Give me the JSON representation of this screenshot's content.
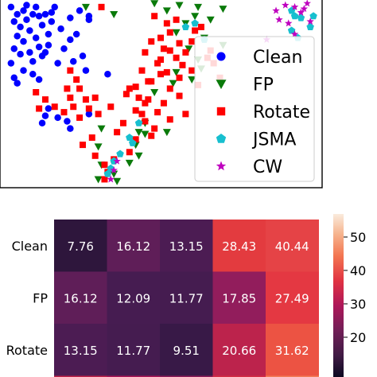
{
  "chart_data": [
    {
      "type": "scatter",
      "legend": {
        "placement": "lower-right",
        "entries": [
          {
            "label": "Clean",
            "marker": "circle",
            "color": "#0000ff"
          },
          {
            "label": "FP",
            "marker": "triangle-down",
            "color": "#0a7a0a"
          },
          {
            "label": "Rotate",
            "marker": "square",
            "color": "#ff0000"
          },
          {
            "label": "JSMA",
            "marker": "pentagon",
            "color": "#17bfcf"
          },
          {
            "label": "CW",
            "marker": "star",
            "color": "#bf00bf"
          }
        ]
      },
      "series": [
        {
          "name": "Clean",
          "points": [
            [
              0.02,
              0.97
            ],
            [
              0.04,
              0.93
            ],
            [
              0.06,
              0.95
            ],
            [
              0.03,
              0.89
            ],
            [
              0.05,
              0.86
            ],
            [
              0.07,
              0.9
            ],
            [
              0.09,
              0.93
            ],
            [
              0.1,
              0.97
            ],
            [
              0.08,
              0.84
            ],
            [
              0.04,
              0.81
            ],
            [
              0.06,
              0.78
            ],
            [
              0.1,
              0.8
            ],
            [
              0.12,
              0.87
            ],
            [
              0.13,
              0.93
            ],
            [
              0.11,
              0.75
            ],
            [
              0.03,
              0.74
            ],
            [
              0.05,
              0.71
            ],
            [
              0.08,
              0.72
            ],
            [
              0.02,
              0.66
            ],
            [
              0.14,
              0.82
            ],
            [
              0.15,
              0.89
            ],
            [
              0.16,
              0.97
            ],
            [
              0.14,
              0.76
            ],
            [
              0.12,
              0.7
            ],
            [
              0.09,
              0.67
            ],
            [
              0.18,
              0.85
            ],
            [
              0.11,
              0.92
            ],
            [
              0.07,
              0.98
            ],
            [
              0.13,
              0.72
            ],
            [
              0.21,
              0.79
            ],
            [
              0.23,
              0.82
            ],
            [
              0.25,
              0.7
            ],
            [
              0.17,
              0.66
            ],
            [
              0.06,
              0.62
            ],
            [
              0.11,
              0.57
            ],
            [
              0.04,
              0.55
            ],
            [
              0.09,
              0.6
            ],
            [
              0.19,
              0.74
            ],
            [
              0.27,
              0.9
            ],
            [
              0.24,
              0.95
            ],
            [
              0.14,
              0.41
            ],
            [
              0.13,
              0.37
            ],
            [
              0.12,
              0.33
            ],
            [
              0.17,
              0.36
            ],
            [
              0.21,
              0.3
            ],
            [
              0.27,
              0.38
            ],
            [
              0.2,
              0.34
            ],
            [
              0.33,
              0.6
            ],
            [
              0.21,
              0.91
            ],
            [
              0.26,
              0.62
            ],
            [
              0.22,
              0.67
            ],
            [
              0.03,
              0.58
            ],
            [
              0.15,
              0.94
            ],
            [
              0.27,
              0.92
            ]
          ]
        },
        {
          "name": "FP",
          "points": [
            [
              0.26,
              0.97
            ],
            [
              0.52,
              0.95
            ],
            [
              0.56,
              0.98
            ],
            [
              0.61,
              0.92
            ],
            [
              0.62,
              0.97
            ],
            [
              0.58,
              0.88
            ],
            [
              0.55,
              0.83
            ],
            [
              0.64,
              0.8
            ],
            [
              0.7,
              0.76
            ],
            [
              0.59,
              0.74
            ],
            [
              0.62,
              0.68
            ],
            [
              0.63,
              0.63
            ],
            [
              0.6,
              0.57
            ],
            [
              0.54,
              0.55
            ],
            [
              0.55,
              0.61
            ],
            [
              0.48,
              0.5
            ],
            [
              0.45,
              0.33
            ],
            [
              0.31,
              0.3
            ],
            [
              0.43,
              0.28
            ],
            [
              0.52,
              0.28
            ],
            [
              0.45,
              0.27
            ],
            [
              0.7,
              0.96
            ],
            [
              0.66,
              0.9
            ],
            [
              0.42,
              0.21
            ],
            [
              0.43,
              0.15
            ],
            [
              0.3,
              0.2
            ],
            [
              0.31,
              0.1
            ],
            [
              0.4,
              0.11
            ],
            [
              0.3,
              0.02
            ],
            [
              0.35,
              0.05
            ],
            [
              0.36,
              0.01
            ],
            [
              0.48,
              0.99
            ],
            [
              0.35,
              0.93
            ]
          ]
        },
        {
          "name": "Rotate",
          "points": [
            [
              0.48,
              0.92
            ],
            [
              0.52,
              0.88
            ],
            [
              0.53,
              0.83
            ],
            [
              0.47,
              0.78
            ],
            [
              0.51,
              0.74
            ],
            [
              0.55,
              0.69
            ],
            [
              0.49,
              0.66
            ],
            [
              0.52,
              0.61
            ],
            [
              0.46,
              0.56
            ],
            [
              0.53,
              0.52
            ],
            [
              0.43,
              0.47
            ],
            [
              0.51,
              0.44
            ],
            [
              0.56,
              0.48
            ],
            [
              0.49,
              0.39
            ],
            [
              0.53,
              0.35
            ],
            [
              0.58,
              0.38
            ],
            [
              0.45,
              0.34
            ],
            [
              0.48,
              0.3
            ],
            [
              0.47,
              0.26
            ],
            [
              0.42,
              0.24
            ],
            [
              0.4,
              0.17
            ],
            [
              0.35,
              0.13
            ],
            [
              0.32,
              0.1
            ],
            [
              0.33,
              0.06
            ],
            [
              0.32,
              0.02
            ],
            [
              0.29,
              0.15
            ],
            [
              0.25,
              0.21
            ],
            [
              0.28,
              0.25
            ],
            [
              0.24,
              0.36
            ],
            [
              0.22,
              0.42
            ],
            [
              0.21,
              0.47
            ],
            [
              0.24,
              0.52
            ],
            [
              0.27,
              0.41
            ],
            [
              0.23,
              0.57
            ],
            [
              0.21,
              0.62
            ],
            [
              0.26,
              0.46
            ],
            [
              0.3,
              0.38
            ],
            [
              0.36,
              0.28
            ],
            [
              0.38,
              0.33
            ],
            [
              0.42,
              0.4
            ],
            [
              0.45,
              0.44
            ],
            [
              0.4,
              0.52
            ],
            [
              0.44,
              0.62
            ],
            [
              0.5,
              0.68
            ],
            [
              0.56,
              0.58
            ],
            [
              0.6,
              0.62
            ],
            [
              0.58,
              0.72
            ],
            [
              0.6,
              0.78
            ],
            [
              0.63,
              0.86
            ],
            [
              0.66,
              0.73
            ],
            [
              0.67,
              0.66
            ],
            [
              0.56,
              0.77
            ],
            [
              0.53,
              0.73
            ],
            [
              0.5,
              0.8
            ],
            [
              0.61,
              0.84
            ],
            [
              0.45,
              0.72
            ],
            [
              0.55,
              0.9
            ],
            [
              0.31,
              0.97
            ],
            [
              0.46,
              0.46
            ],
            [
              0.44,
              0.38
            ],
            [
              0.47,
              0.56
            ],
            [
              0.57,
              0.65
            ],
            [
              0.65,
              0.69
            ],
            [
              0.69,
              0.58
            ],
            [
              0.62,
              0.54
            ],
            [
              0.1,
              0.5
            ],
            [
              0.13,
              0.46
            ],
            [
              0.16,
              0.42
            ],
            [
              0.19,
              0.39
            ],
            [
              0.11,
              0.41
            ],
            [
              0.2,
              0.52
            ],
            [
              0.29,
              0.47
            ],
            [
              0.34,
              0.42
            ],
            [
              0.39,
              0.49
            ],
            [
              0.42,
              0.53
            ],
            [
              0.5,
              0.6
            ]
          ]
        },
        {
          "name": "JSMA",
          "points": [
            [
              0.92,
              0.95
            ],
            [
              0.93,
              0.92
            ],
            [
              0.95,
              0.91
            ],
            [
              0.99,
              0.92
            ],
            [
              0.98,
              0.86
            ],
            [
              0.94,
              0.8
            ],
            [
              0.92,
              0.84
            ],
            [
              0.58,
              0.86
            ],
            [
              0.61,
              0.88
            ],
            [
              0.64,
              0.79
            ],
            [
              0.41,
              0.22
            ],
            [
              0.4,
              0.25
            ],
            [
              0.43,
              0.33
            ],
            [
              0.37,
              0.16
            ],
            [
              0.35,
              0.12
            ],
            [
              0.34,
              0.08
            ],
            [
              0.33,
              0.05
            ]
          ]
        },
        {
          "name": "CW",
          "points": [
            [
              0.87,
              0.95
            ],
            [
              0.9,
              0.98
            ],
            [
              0.93,
              0.97
            ],
            [
              0.95,
              0.94
            ],
            [
              0.97,
              0.99
            ],
            [
              0.88,
              0.9
            ],
            [
              0.91,
              0.88
            ],
            [
              0.93,
              0.82
            ],
            [
              0.98,
              0.89
            ],
            [
              0.96,
              0.96
            ],
            [
              0.84,
              0.79
            ],
            [
              0.36,
              0.12
            ],
            [
              0.34,
              0.02
            ],
            [
              0.35,
              0.07
            ]
          ]
        }
      ]
    },
    {
      "type": "heatmap",
      "rows": [
        "Clean",
        "FP",
        "Rotate"
      ],
      "values": [
        [
          7.76,
          16.12,
          13.15,
          28.43,
          40.44
        ],
        [
          16.12,
          12.09,
          11.77,
          17.85,
          27.49
        ],
        [
          13.15,
          11.77,
          9.51,
          20.66,
          31.62
        ]
      ],
      "colorbar": {
        "ticks": [
          50,
          40,
          30,
          20
        ],
        "min": 15,
        "max": 55
      }
    }
  ]
}
